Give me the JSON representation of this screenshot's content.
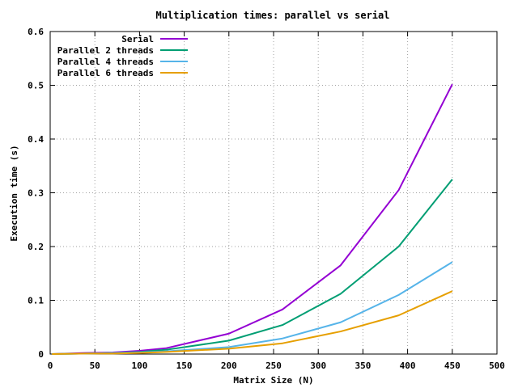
{
  "chart_data": {
    "type": "line",
    "title": "Multiplication times: parallel vs serial",
    "xlabel": "Matrix Size (N)",
    "ylabel": "Execution time (s)",
    "xlim": [
      0,
      500
    ],
    "ylim": [
      0,
      0.6
    ],
    "xticks": [
      "0",
      "50",
      "100",
      "150",
      "200",
      "250",
      "300",
      "350",
      "400",
      "450",
      "500"
    ],
    "yticks": [
      "0",
      "0.1",
      "0.2",
      "0.3",
      "0.4",
      "0.5",
      "0.6"
    ],
    "grid": true,
    "legend_position": "top-left",
    "x": [
      2,
      40,
      70,
      100,
      130,
      200,
      260,
      325,
      390,
      450
    ],
    "series": [
      {
        "name": "Serial",
        "color": "#9400d3",
        "values": [
          0.0,
          0.002,
          0.003,
          0.006,
          0.011,
          0.038,
          0.083,
          0.165,
          0.305,
          0.502
        ]
      },
      {
        "name": "Parallel 2 threads",
        "color": "#009e73",
        "values": [
          0.0,
          0.001,
          0.002,
          0.004,
          0.008,
          0.025,
          0.054,
          0.112,
          0.2,
          0.325
        ]
      },
      {
        "name": "Parallel 4 threads",
        "color": "#56b4e9",
        "values": [
          0.0,
          0.001,
          0.002,
          0.003,
          0.005,
          0.013,
          0.029,
          0.059,
          0.11,
          0.171
        ]
      },
      {
        "name": "Parallel 6 threads",
        "color": "#e69f00",
        "values": [
          0.0,
          0.001,
          0.001,
          0.002,
          0.004,
          0.01,
          0.02,
          0.042,
          0.072,
          0.117
        ]
      }
    ]
  }
}
